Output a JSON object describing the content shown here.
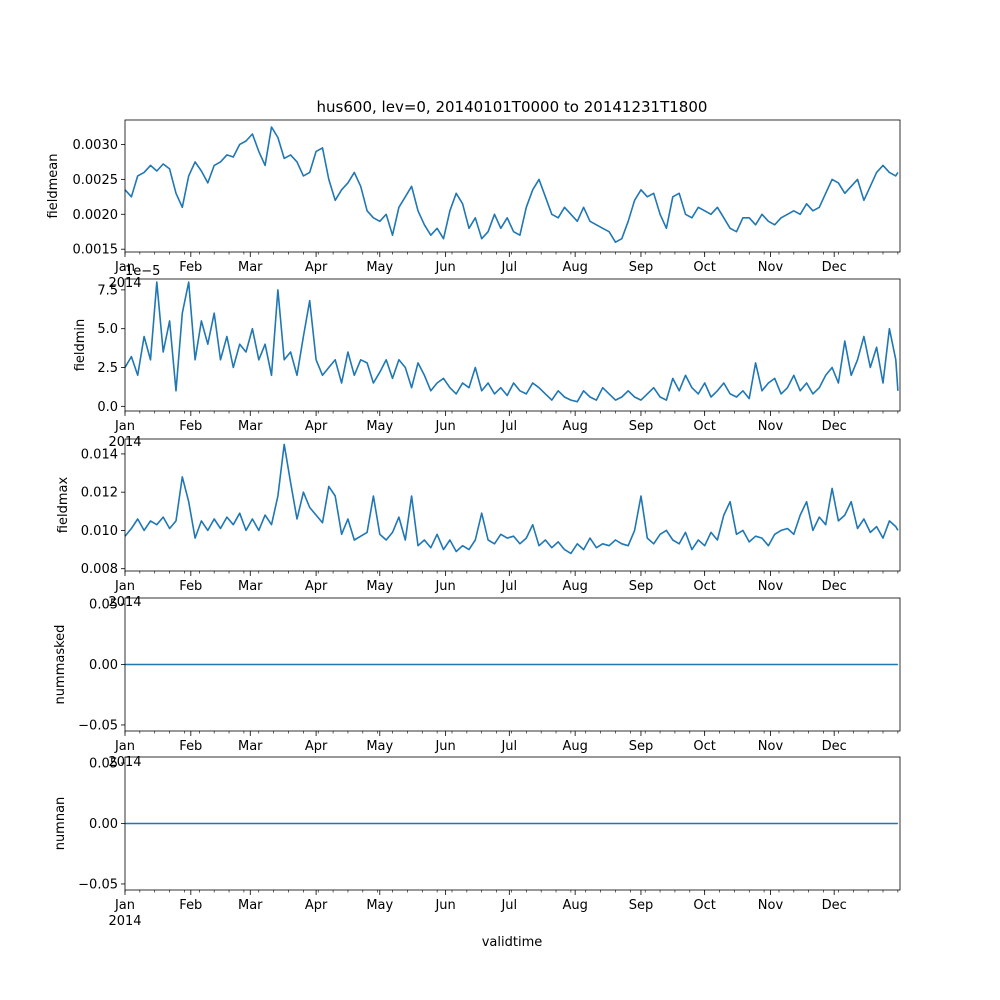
{
  "figure_title": "hus600, lev=0, 20140101T0000 to 20141231T1800",
  "shared_xlabel": "validtime",
  "year_label": "2014",
  "line_color": "#1f77b4",
  "x_ticks": [
    "Jan",
    "Feb",
    "Mar",
    "Apr",
    "May",
    "Jun",
    "Jul",
    "Aug",
    "Sep",
    "Oct",
    "Nov",
    "Dec"
  ],
  "chart_data": [
    {
      "type": "line",
      "ylabel": "fieldmean",
      "ylim": [
        0.00146,
        0.00335
      ],
      "yticks": [
        0.0015,
        0.002,
        0.0025,
        0.003
      ],
      "ytick_labels": [
        "0.0015",
        "0.0020",
        "0.0025",
        "0.0030"
      ],
      "offset_text": "",
      "x_day": [
        0,
        3,
        6,
        9,
        12,
        15,
        18,
        21,
        24,
        27,
        30,
        33,
        36,
        39,
        42,
        45,
        48,
        51,
        54,
        57,
        60,
        63,
        66,
        69,
        72,
        75,
        78,
        81,
        84,
        87,
        90,
        93,
        96,
        99,
        102,
        105,
        108,
        111,
        114,
        117,
        120,
        123,
        126,
        129,
        132,
        135,
        138,
        141,
        144,
        147,
        150,
        153,
        156,
        159,
        162,
        165,
        168,
        171,
        174,
        177,
        180,
        183,
        186,
        189,
        192,
        195,
        198,
        201,
        204,
        207,
        210,
        213,
        216,
        219,
        222,
        225,
        228,
        231,
        234,
        237,
        240,
        243,
        246,
        249,
        252,
        255,
        258,
        261,
        264,
        267,
        270,
        273,
        276,
        279,
        282,
        285,
        288,
        291,
        294,
        297,
        300,
        303,
        306,
        309,
        312,
        315,
        318,
        321,
        324,
        327,
        330,
        333,
        336,
        339,
        342,
        345,
        348,
        351,
        354,
        357,
        360,
        363,
        364
      ],
      "values": [
        0.00235,
        0.00225,
        0.00255,
        0.0026,
        0.0027,
        0.00262,
        0.00272,
        0.00265,
        0.0023,
        0.0021,
        0.00255,
        0.00275,
        0.00262,
        0.00245,
        0.0027,
        0.00275,
        0.00285,
        0.00282,
        0.003,
        0.00305,
        0.00315,
        0.0029,
        0.0027,
        0.00325,
        0.0031,
        0.0028,
        0.00285,
        0.00275,
        0.00255,
        0.0026,
        0.0029,
        0.00295,
        0.0025,
        0.0022,
        0.00235,
        0.00245,
        0.0026,
        0.0024,
        0.00205,
        0.00195,
        0.0019,
        0.002,
        0.0017,
        0.0021,
        0.00225,
        0.0024,
        0.00205,
        0.00185,
        0.0017,
        0.0018,
        0.00165,
        0.00205,
        0.0023,
        0.00215,
        0.0018,
        0.00195,
        0.00165,
        0.00175,
        0.002,
        0.0018,
        0.00195,
        0.00175,
        0.0017,
        0.0021,
        0.00235,
        0.0025,
        0.00225,
        0.002,
        0.00195,
        0.0021,
        0.002,
        0.0019,
        0.0021,
        0.0019,
        0.00185,
        0.0018,
        0.00175,
        0.0016,
        0.00165,
        0.0019,
        0.0022,
        0.00235,
        0.00225,
        0.0023,
        0.002,
        0.0018,
        0.00225,
        0.0023,
        0.002,
        0.00195,
        0.0021,
        0.00205,
        0.002,
        0.0021,
        0.00195,
        0.0018,
        0.00175,
        0.00195,
        0.00195,
        0.00185,
        0.002,
        0.0019,
        0.00185,
        0.00195,
        0.002,
        0.00205,
        0.002,
        0.00215,
        0.00205,
        0.0021,
        0.0023,
        0.0025,
        0.00245,
        0.0023,
        0.0024,
        0.0025,
        0.0022,
        0.0024,
        0.0026,
        0.0027,
        0.0026,
        0.00255,
        0.0026
      ]
    },
    {
      "type": "line",
      "ylabel": "fieldmin",
      "ylim": [
        -3e-06,
        8.2e-05
      ],
      "yticks": [
        0.0,
        2.5e-05,
        5e-05,
        7.5e-05
      ],
      "ytick_labels": [
        "0.0",
        "2.5",
        "5.0",
        "7.5"
      ],
      "offset_text": "1e−5",
      "x_day": [
        0,
        3,
        6,
        9,
        12,
        15,
        18,
        21,
        24,
        27,
        30,
        33,
        36,
        39,
        42,
        45,
        48,
        51,
        54,
        57,
        60,
        63,
        66,
        69,
        72,
        75,
        78,
        81,
        84,
        87,
        90,
        93,
        96,
        99,
        102,
        105,
        108,
        111,
        114,
        117,
        120,
        123,
        126,
        129,
        132,
        135,
        138,
        141,
        144,
        147,
        150,
        153,
        156,
        159,
        162,
        165,
        168,
        171,
        174,
        177,
        180,
        183,
        186,
        189,
        192,
        195,
        198,
        201,
        204,
        207,
        210,
        213,
        216,
        219,
        222,
        225,
        228,
        231,
        234,
        237,
        240,
        243,
        246,
        249,
        252,
        255,
        258,
        261,
        264,
        267,
        270,
        273,
        276,
        279,
        282,
        285,
        288,
        291,
        294,
        297,
        300,
        303,
        306,
        309,
        312,
        315,
        318,
        321,
        324,
        327,
        330,
        333,
        336,
        339,
        342,
        345,
        348,
        351,
        354,
        357,
        360,
        363,
        364
      ],
      "values": [
        2.5e-05,
        3.2e-05,
        2e-05,
        4.5e-05,
        3e-05,
        8e-05,
        3.5e-05,
        5.5e-05,
        1e-05,
        6e-05,
        8e-05,
        3e-05,
        5.5e-05,
        4e-05,
        6e-05,
        3e-05,
        4.5e-05,
        2.5e-05,
        4e-05,
        3.5e-05,
        5e-05,
        3e-05,
        4e-05,
        2e-05,
        7.5e-05,
        3e-05,
        3.5e-05,
        2e-05,
        4.5e-05,
        6.8e-05,
        3e-05,
        2e-05,
        2.5e-05,
        3e-05,
        1.5e-05,
        3.5e-05,
        2e-05,
        3e-05,
        2.8e-05,
        1.5e-05,
        2.2e-05,
        3e-05,
        1.8e-05,
        3e-05,
        2.5e-05,
        1.2e-05,
        2.8e-05,
        2e-05,
        1e-05,
        1.5e-05,
        1.8e-05,
        1.2e-05,
        8e-06,
        1.5e-05,
        1.2e-05,
        2.5e-05,
        1e-05,
        1.5e-05,
        8e-06,
        1.2e-05,
        7e-06,
        1.5e-05,
        1e-05,
        8e-06,
        1.5e-05,
        1.2e-05,
        8e-06,
        4e-06,
        1e-05,
        6e-06,
        4e-06,
        3e-06,
        1e-05,
        6e-06,
        4e-06,
        1.2e-05,
        8e-06,
        4e-06,
        6e-06,
        1e-05,
        6e-06,
        4e-06,
        8e-06,
        1.2e-05,
        6e-06,
        4e-06,
        1.8e-05,
        1e-05,
        2e-05,
        1.2e-05,
        8e-06,
        1.5e-05,
        6e-06,
        1e-05,
        1.5e-05,
        8e-06,
        6e-06,
        1e-05,
        5e-06,
        2.8e-05,
        1e-05,
        1.5e-05,
        1.8e-05,
        8e-06,
        1.2e-05,
        2e-05,
        1e-05,
        1.5e-05,
        8e-06,
        1.2e-05,
        2e-05,
        2.5e-05,
        1.5e-05,
        4.2e-05,
        2e-05,
        3e-05,
        4.5e-05,
        2.5e-05,
        3.8e-05,
        1.5e-05,
        5e-05,
        3e-05,
        1e-05
      ]
    },
    {
      "type": "line",
      "ylabel": "fieldmax",
      "ylim": [
        0.00788,
        0.01478
      ],
      "yticks": [
        0.008,
        0.01,
        0.012,
        0.014
      ],
      "ytick_labels": [
        "0.008",
        "0.010",
        "0.012",
        "0.014"
      ],
      "offset_text": "",
      "x_day": [
        0,
        3,
        6,
        9,
        12,
        15,
        18,
        21,
        24,
        27,
        30,
        33,
        36,
        39,
        42,
        45,
        48,
        51,
        54,
        57,
        60,
        63,
        66,
        69,
        72,
        75,
        78,
        81,
        84,
        87,
        90,
        93,
        96,
        99,
        102,
        105,
        108,
        111,
        114,
        117,
        120,
        123,
        126,
        129,
        132,
        135,
        138,
        141,
        144,
        147,
        150,
        153,
        156,
        159,
        162,
        165,
        168,
        171,
        174,
        177,
        180,
        183,
        186,
        189,
        192,
        195,
        198,
        201,
        204,
        207,
        210,
        213,
        216,
        219,
        222,
        225,
        228,
        231,
        234,
        237,
        240,
        243,
        246,
        249,
        252,
        255,
        258,
        261,
        264,
        267,
        270,
        273,
        276,
        279,
        282,
        285,
        288,
        291,
        294,
        297,
        300,
        303,
        306,
        309,
        312,
        315,
        318,
        321,
        324,
        327,
        330,
        333,
        336,
        339,
        342,
        345,
        348,
        351,
        354,
        357,
        360,
        363,
        364
      ],
      "values": [
        0.0097,
        0.0101,
        0.0106,
        0.01,
        0.0105,
        0.0103,
        0.0107,
        0.0101,
        0.0105,
        0.0128,
        0.0115,
        0.0096,
        0.0105,
        0.01,
        0.0106,
        0.0101,
        0.0107,
        0.0103,
        0.0109,
        0.01,
        0.0106,
        0.01,
        0.0108,
        0.0103,
        0.0118,
        0.0145,
        0.0125,
        0.0106,
        0.012,
        0.0112,
        0.0108,
        0.0104,
        0.0123,
        0.0118,
        0.0098,
        0.0106,
        0.0095,
        0.0097,
        0.0099,
        0.0118,
        0.0098,
        0.0095,
        0.0099,
        0.0107,
        0.0095,
        0.0118,
        0.0092,
        0.0095,
        0.0091,
        0.0098,
        0.009,
        0.0095,
        0.0089,
        0.0092,
        0.009,
        0.0095,
        0.0109,
        0.0095,
        0.0093,
        0.0098,
        0.0096,
        0.0097,
        0.0093,
        0.0096,
        0.0103,
        0.0092,
        0.0095,
        0.0091,
        0.0094,
        0.009,
        0.0088,
        0.0093,
        0.009,
        0.0096,
        0.0091,
        0.0093,
        0.0092,
        0.0095,
        0.0093,
        0.0092,
        0.01,
        0.0118,
        0.0096,
        0.0093,
        0.0098,
        0.01,
        0.0095,
        0.0093,
        0.0099,
        0.009,
        0.0095,
        0.0092,
        0.0099,
        0.0095,
        0.0108,
        0.0115,
        0.0098,
        0.01,
        0.0094,
        0.0097,
        0.0096,
        0.0092,
        0.0098,
        0.01,
        0.0101,
        0.0098,
        0.0108,
        0.0115,
        0.01,
        0.0107,
        0.0103,
        0.0122,
        0.0105,
        0.0108,
        0.0115,
        0.0101,
        0.0106,
        0.0099,
        0.0102,
        0.0096,
        0.0105,
        0.0102,
        0.01
      ]
    },
    {
      "type": "line",
      "ylabel": "nummasked",
      "ylim": [
        -0.055,
        0.055
      ],
      "yticks": [
        -0.05,
        0.0,
        0.05
      ],
      "ytick_labels": [
        "−0.05",
        "0.00",
        "0.05"
      ],
      "offset_text": "",
      "x_day": [
        0,
        364
      ],
      "values": [
        0,
        0
      ]
    },
    {
      "type": "line",
      "ylabel": "numnan",
      "ylim": [
        -0.055,
        0.055
      ],
      "yticks": [
        -0.05,
        0.0,
        0.05
      ],
      "ytick_labels": [
        "−0.05",
        "0.00",
        "0.05"
      ],
      "offset_text": "",
      "x_day": [
        0,
        364
      ],
      "values": [
        0,
        0
      ]
    }
  ]
}
